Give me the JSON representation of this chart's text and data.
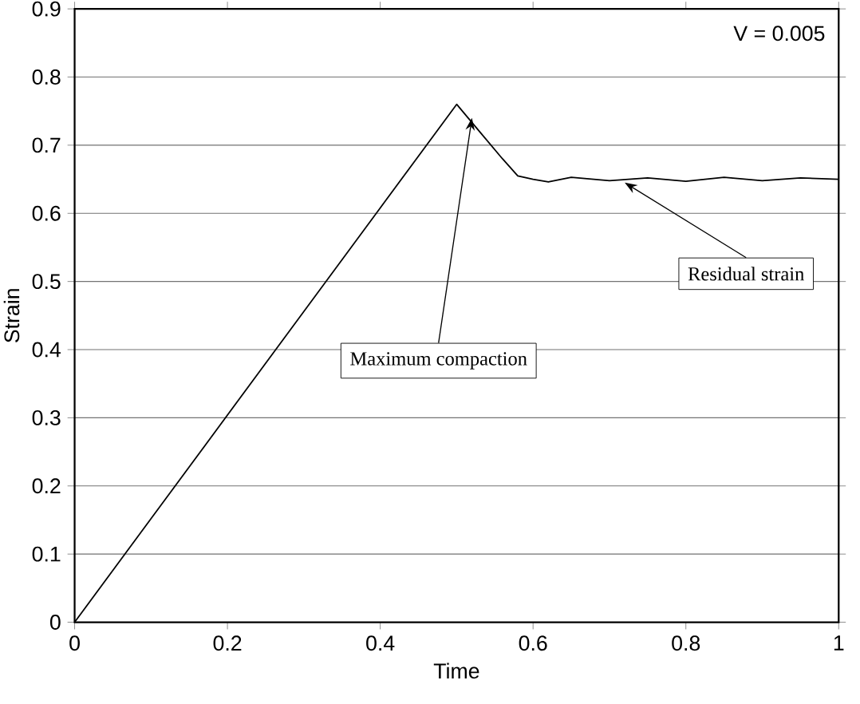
{
  "chart_data": {
    "type": "line",
    "xlabel": "Time",
    "ylabel": "Strain",
    "x": [
      0,
      0.1,
      0.2,
      0.3,
      0.4,
      0.5,
      0.53,
      0.56,
      0.58,
      0.6,
      0.62,
      0.65,
      0.7,
      0.75,
      0.8,
      0.85,
      0.9,
      0.95,
      1
    ],
    "series": [
      {
        "color": "#000000",
        "values": [
          0,
          0.152,
          0.304,
          0.456,
          0.608,
          0.76,
          0.72,
          0.68,
          0.655,
          0.65,
          0.646,
          0.653,
          0.648,
          0.652,
          0.647,
          0.653,
          0.648,
          0.652,
          0.65
        ]
      }
    ],
    "xlim": [
      0,
      1
    ],
    "ylim": [
      0,
      0.9
    ],
    "xticks": [
      0,
      0.2,
      0.4,
      0.6,
      0.8,
      1
    ],
    "yticks": [
      0,
      0.1,
      0.2,
      0.3,
      0.4,
      0.5,
      0.6,
      0.7,
      0.8,
      0.9
    ],
    "grid": "y",
    "marker": "none",
    "line_style": "solid",
    "annotations": [
      "V = 0.005",
      {
        "text": "Maximum compaction",
        "x": 0.52,
        "y": 0.74
      },
      {
        "text": "Residual strain",
        "x": 0.72,
        "y": 0.645
      }
    ]
  }
}
